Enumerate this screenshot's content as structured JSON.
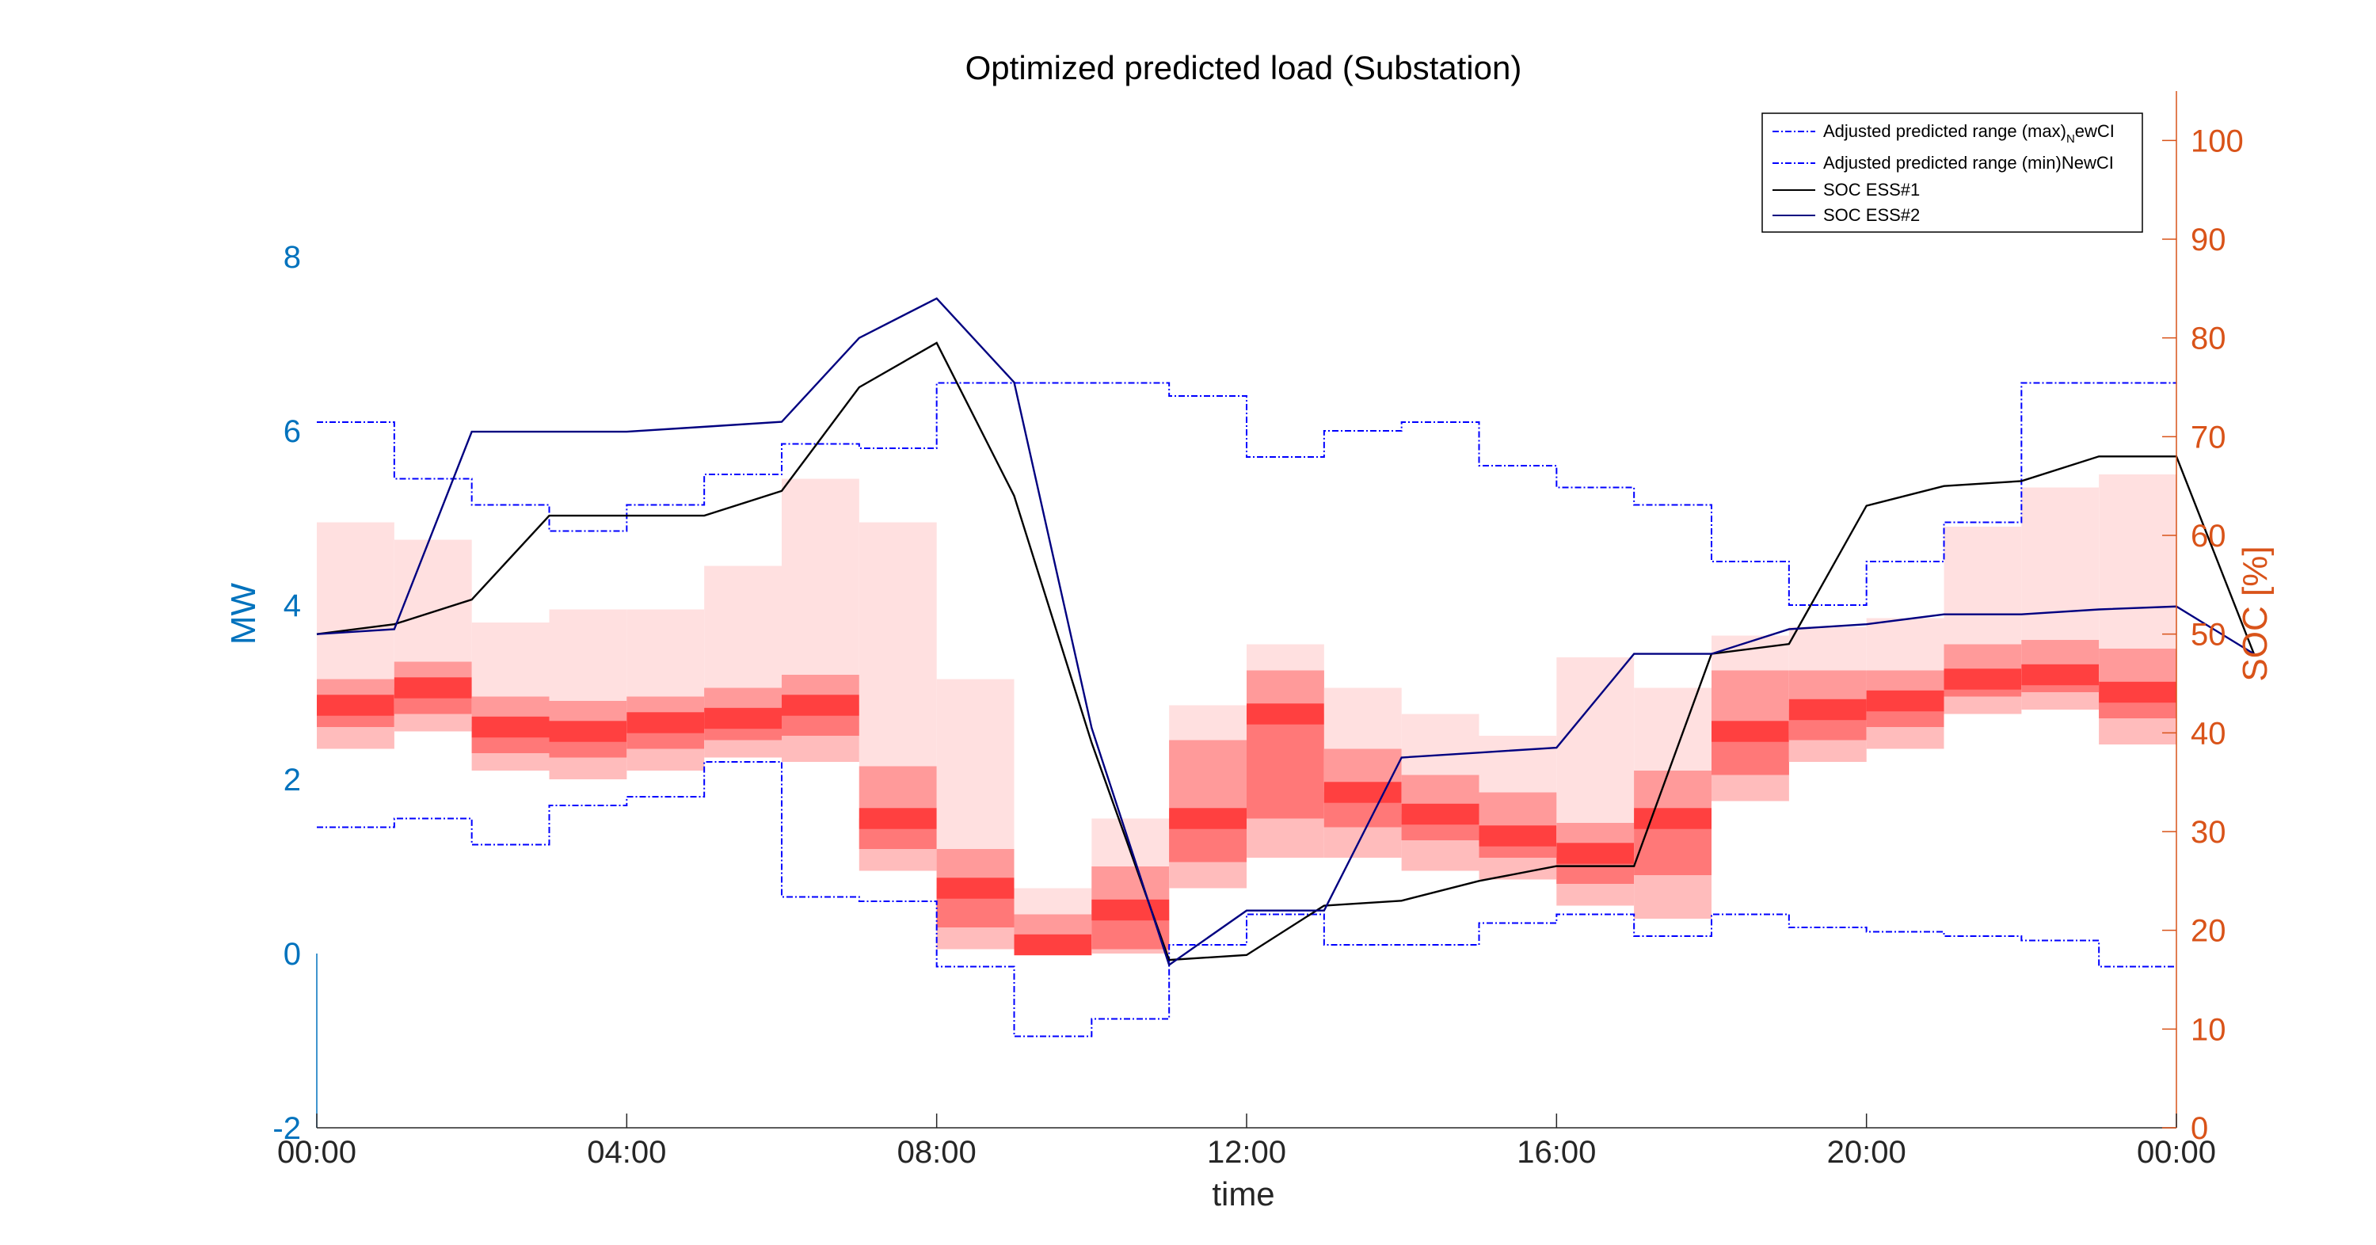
{
  "chart_data": {
    "type": "heatmap",
    "title": "Optimized predicted load (Substation)",
    "xlabel": "time",
    "ylabel_left": "MW",
    "ylabel_right": "SOC [%]",
    "x_ticks": [
      "00:00",
      "04:00",
      "08:00",
      "12:00",
      "16:00",
      "20:00",
      "00:00"
    ],
    "x_range_hours": [
      0,
      24
    ],
    "y_left_ticks": [
      "-2",
      "0",
      "2",
      "4",
      "6",
      "8"
    ],
    "y_left_range": [
      -2,
      9.9
    ],
    "y_right_ticks": [
      "0",
      "10",
      "20",
      "30",
      "40",
      "50",
      "60",
      "70",
      "80",
      "90",
      "100"
    ],
    "y_right_range": [
      0,
      105
    ],
    "grid": false,
    "legend_position": "top-right",
    "colors": {
      "left_axis": "#0072BD",
      "right_axis": "#D95319",
      "max_min_lines": "#0000FF",
      "soc_ess1": "#000000",
      "soc_ess2": "#000080",
      "band_base": "#FF0000"
    },
    "legend": {
      "max_label_main": "Adjusted predicted range (max)",
      "max_label_sub": "N",
      "max_label_tail": "ewCI",
      "min_label": "Adjusted predicted range (min)NewCI",
      "ess1_label": "SOC ESS#1",
      "ess2_label": "SOC ESS#2"
    },
    "adjusted_max_mw": [
      6.1,
      5.45,
      5.15,
      4.85,
      5.15,
      5.5,
      5.85,
      5.8,
      6.55,
      6.55,
      6.55,
      6.4,
      5.7,
      6.0,
      6.1,
      5.6,
      5.35,
      5.15,
      4.5,
      4.0,
      4.5,
      4.95,
      6.55,
      6.55
    ],
    "adjusted_min_mw": [
      1.45,
      1.55,
      1.25,
      1.7,
      1.8,
      2.2,
      0.65,
      0.6,
      -0.15,
      -0.95,
      -0.75,
      0.1,
      0.45,
      0.1,
      0.1,
      0.35,
      0.45,
      0.2,
      0.45,
      0.3,
      0.25,
      0.2,
      0.15,
      -0.15
    ],
    "soc_ess1_percent": [
      50,
      51,
      53.5,
      62,
      62,
      62,
      64.5,
      75,
      79.5,
      64,
      39,
      17,
      17.5,
      22.5,
      23,
      25,
      26.5,
      26.5,
      48,
      49,
      63,
      65,
      65.5,
      68,
      68,
      48
    ],
    "soc_ess2_percent": [
      50,
      50.5,
      70.5,
      70.5,
      70.5,
      71,
      71.5,
      80,
      84,
      75.5,
      40.5,
      16.5,
      22,
      22,
      37.5,
      38,
      38.5,
      48,
      48,
      50.5,
      51,
      52,
      52,
      52.5,
      52.8,
      48
    ],
    "band_intervals": [
      {
        "q05": 2.35,
        "q25": 2.6,
        "q50": 2.85,
        "q75": 3.15,
        "q95": 4.95
      },
      {
        "q05": 2.55,
        "q25": 2.75,
        "q50": 3.05,
        "q75": 3.35,
        "q95": 4.75
      },
      {
        "q05": 2.1,
        "q25": 2.3,
        "q50": 2.6,
        "q75": 2.95,
        "q95": 3.8
      },
      {
        "q05": 2.0,
        "q25": 2.25,
        "q50": 2.55,
        "q75": 2.9,
        "q95": 3.95
      },
      {
        "q05": 2.1,
        "q25": 2.35,
        "q50": 2.65,
        "q75": 2.95,
        "q95": 3.95
      },
      {
        "q05": 2.25,
        "q25": 2.45,
        "q50": 2.7,
        "q75": 3.05,
        "q95": 4.45
      },
      {
        "q05": 2.2,
        "q25": 2.5,
        "q50": 2.85,
        "q75": 3.2,
        "q95": 5.45
      },
      {
        "q05": 0.95,
        "q25": 1.2,
        "q50": 1.55,
        "q75": 2.15,
        "q95": 4.95
      },
      {
        "q05": 0.05,
        "q25": 0.3,
        "q50": 0.75,
        "q75": 1.2,
        "q95": 3.15
      },
      {
        "q05": 0.0,
        "q25": 0.02,
        "q50": 0.1,
        "q75": 0.45,
        "q95": 0.75
      },
      {
        "q05": 0.0,
        "q25": 0.05,
        "q50": 0.5,
        "q75": 1.0,
        "q95": 1.55
      },
      {
        "q05": 0.75,
        "q25": 1.05,
        "q50": 1.55,
        "q75": 2.45,
        "q95": 2.85
      },
      {
        "q05": 1.1,
        "q25": 1.55,
        "q50": 2.75,
        "q75": 3.25,
        "q95": 3.55
      },
      {
        "q05": 1.1,
        "q25": 1.45,
        "q50": 1.85,
        "q75": 2.35,
        "q95": 3.05
      },
      {
        "q05": 0.95,
        "q25": 1.3,
        "q50": 1.6,
        "q75": 2.05,
        "q95": 2.75
      },
      {
        "q05": 0.85,
        "q25": 1.1,
        "q50": 1.35,
        "q75": 1.85,
        "q95": 2.5
      },
      {
        "q05": 0.55,
        "q25": 0.8,
        "q50": 1.15,
        "q75": 1.5,
        "q95": 3.4
      },
      {
        "q05": 0.4,
        "q25": 0.9,
        "q50": 1.55,
        "q75": 2.1,
        "q95": 3.05
      },
      {
        "q05": 1.75,
        "q25": 2.05,
        "q50": 2.55,
        "q75": 3.25,
        "q95": 3.65
      },
      {
        "q05": 2.2,
        "q25": 2.45,
        "q50": 2.8,
        "q75": 3.25,
        "q95": 3.75
      },
      {
        "q05": 2.35,
        "q25": 2.6,
        "q50": 2.9,
        "q75": 3.25,
        "q95": 3.85
      },
      {
        "q05": 2.75,
        "q25": 2.95,
        "q50": 3.15,
        "q75": 3.55,
        "q95": 4.9
      },
      {
        "q05": 2.8,
        "q25": 3.0,
        "q50": 3.2,
        "q75": 3.6,
        "q95": 5.35
      },
      {
        "q05": 2.4,
        "q25": 2.7,
        "q50": 3.0,
        "q75": 3.5,
        "q95": 5.5
      }
    ]
  }
}
